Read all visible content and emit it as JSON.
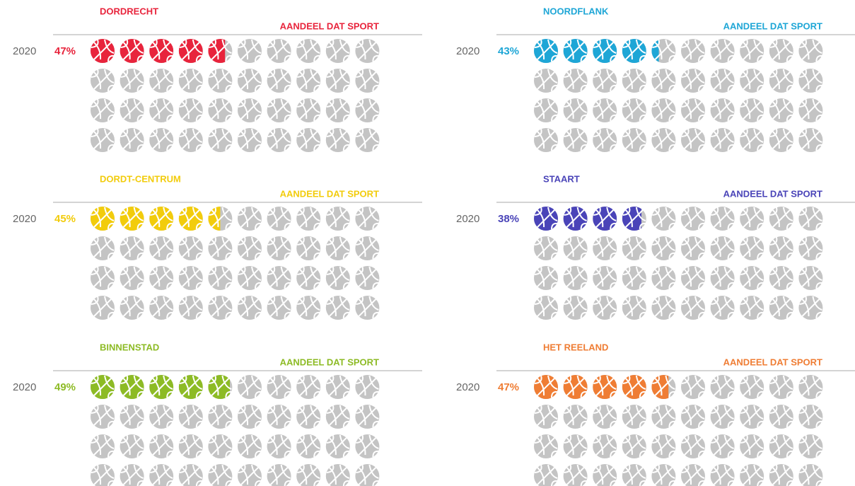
{
  "chart_data": [
    {
      "type": "pictogram",
      "title": "DORDRECHT",
      "subtitle": "AANDEEL DAT SPORT",
      "categories": [
        "2020"
      ],
      "values": [
        47
      ],
      "value_labels": [
        "47%"
      ],
      "color": "#e8243c"
    },
    {
      "type": "pictogram",
      "title": "NOORDFLANK",
      "subtitle": "AANDEEL DAT SPORT",
      "categories": [
        "2020"
      ],
      "values": [
        43
      ],
      "value_labels": [
        "43%"
      ],
      "color": "#1ea6d6"
    },
    {
      "type": "pictogram",
      "title": "DORDT-CENTRUM",
      "subtitle": "AANDEEL DAT SPORT",
      "categories": [
        "2020"
      ],
      "values": [
        45
      ],
      "value_labels": [
        "45%"
      ],
      "color": "#f2cc0c"
    },
    {
      "type": "pictogram",
      "title": "STAART",
      "subtitle": "AANDEEL DAT SPORT",
      "categories": [
        "2020"
      ],
      "values": [
        38
      ],
      "value_labels": [
        "38%"
      ],
      "color": "#4a44b8"
    },
    {
      "type": "pictogram",
      "title": "BINNENSTAD",
      "subtitle": "AANDEEL DAT SPORT",
      "categories": [
        "2020"
      ],
      "values": [
        49
      ],
      "value_labels": [
        "49%"
      ],
      "color": "#8dbb25"
    },
    {
      "type": "pictogram",
      "title": "HET REELAND",
      "subtitle": "AANDEEL DAT SPORT",
      "categories": [
        "2020"
      ],
      "values": [
        47
      ],
      "value_labels": [
        "47%"
      ],
      "color": "#ef7d34"
    }
  ]
}
